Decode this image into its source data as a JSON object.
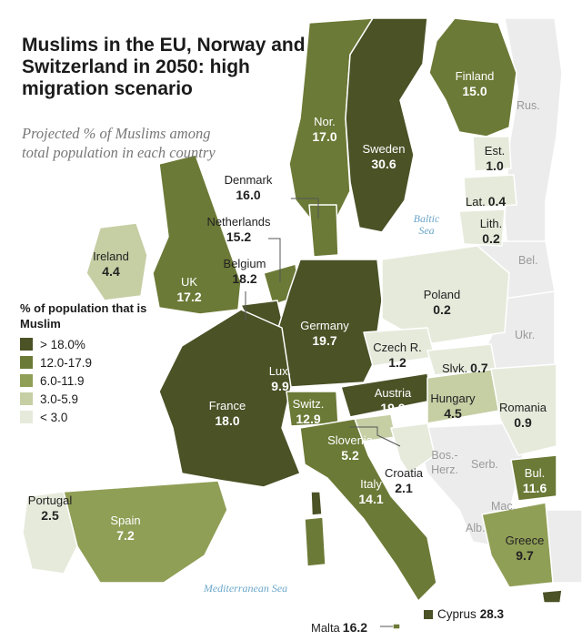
{
  "title": "Muslims in the EU, Norway and Switzerland in 2050: high migration scenario",
  "subtitle": "Projected % of Muslims among total population in each country",
  "legend": {
    "title": "% of population that is Muslim",
    "items": [
      {
        "label": "> 18.0%",
        "color": "#4a5226"
      },
      {
        "label": "12.0-17.9",
        "color": "#6b7a36"
      },
      {
        "label": "6.0-11.9",
        "color": "#8f9f56"
      },
      {
        "label": "3.0-5.9",
        "color": "#c6cea4"
      },
      {
        "label": "< 3.0",
        "color": "#e6eadb"
      }
    ]
  },
  "seas": {
    "baltic": "Baltic Sea",
    "mediterranean": "Mediterranean Sea"
  },
  "countries": {
    "finland": {
      "name": "Finland",
      "value": "15.0"
    },
    "russia": {
      "name": "Rus."
    },
    "norway": {
      "name": "Nor.",
      "value": "17.0"
    },
    "sweden": {
      "name": "Sweden",
      "value": "30.6"
    },
    "estonia": {
      "name": "Est.",
      "value": "1.0"
    },
    "latvia": {
      "name": "Lat.",
      "value": "0.4"
    },
    "lithuania": {
      "name": "Lith.",
      "value": "0.2"
    },
    "denmark": {
      "name": "Denmark",
      "value": "16.0"
    },
    "netherlands": {
      "name": "Netherlands",
      "value": "15.2"
    },
    "belgium": {
      "name": "Belgium",
      "value": "18.2"
    },
    "ireland": {
      "name": "Ireland",
      "value": "4.4"
    },
    "uk": {
      "name": "UK",
      "value": "17.2"
    },
    "belarus": {
      "name": "Bel."
    },
    "poland": {
      "name": "Poland",
      "value": "0.2"
    },
    "germany": {
      "name": "Germany",
      "value": "19.7"
    },
    "ukraine": {
      "name": "Ukr."
    },
    "czech": {
      "name": "Czech R.",
      "value": "1.2"
    },
    "slovakia": {
      "name": "Slvk.",
      "value": "0.7"
    },
    "luxembourg": {
      "name": "Lux.",
      "value": "9.9"
    },
    "france": {
      "name": "France",
      "value": "18.0"
    },
    "switzerland": {
      "name": "Switz.",
      "value": "12.9"
    },
    "austria": {
      "name": "Austria",
      "value": "19.9"
    },
    "hungary": {
      "name": "Hungary",
      "value": "4.5"
    },
    "romania": {
      "name": "Romania",
      "value": "0.9"
    },
    "slovenia": {
      "name": "Slovenia",
      "value": "5.2"
    },
    "bosnia": {
      "name": "Bos.-Herz."
    },
    "serbia": {
      "name": "Serb."
    },
    "croatia": {
      "name": "Croatia",
      "value": "2.1"
    },
    "bulgaria": {
      "name": "Bul.",
      "value": "11.6"
    },
    "portugal": {
      "name": "Portugal",
      "value": "2.5"
    },
    "spain": {
      "name": "Spain",
      "value": "7.2"
    },
    "italy": {
      "name": "Italy",
      "value": "14.1"
    },
    "macedonia": {
      "name": "Mac."
    },
    "albania": {
      "name": "Alb."
    },
    "greece": {
      "name": "Greece",
      "value": "9.7"
    },
    "cyprus": {
      "name": "Cyprus",
      "value": "28.3"
    },
    "malta": {
      "name": "Malta",
      "value": "16.2"
    }
  }
}
